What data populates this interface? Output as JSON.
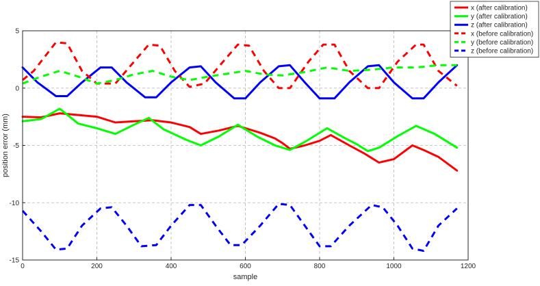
{
  "chart_data": {
    "type": "line",
    "xlabel": "sample",
    "ylabel": "position error (mm)",
    "xlim": [
      0,
      1200
    ],
    "ylim": [
      -15,
      5
    ],
    "xticks": [
      0,
      200,
      400,
      600,
      800,
      1000,
      1200
    ],
    "yticks": [
      -15,
      -10,
      -5,
      0,
      5
    ],
    "xtick_labels": [
      "0",
      "200",
      "400",
      "600",
      "800",
      "1000",
      "1200"
    ],
    "ytick_labels": [
      "-15",
      "-10",
      "-5",
      "0",
      "5"
    ],
    "grid": true,
    "legend_position": "top-right",
    "series": [
      {
        "name": "x (after calibration)",
        "color": "#ff0000",
        "dash": "solid",
        "points": [
          [
            0,
            -2.5
          ],
          [
            50,
            -2.55
          ],
          [
            100,
            -2.2
          ],
          [
            150,
            -2.35
          ],
          [
            200,
            -2.5
          ],
          [
            250,
            -3.0
          ],
          [
            300,
            -2.9
          ],
          [
            350,
            -2.8
          ],
          [
            400,
            -3.0
          ],
          [
            450,
            -3.4
          ],
          [
            480,
            -4.0
          ],
          [
            530,
            -3.7
          ],
          [
            580,
            -3.3
          ],
          [
            640,
            -3.9
          ],
          [
            680,
            -4.4
          ],
          [
            700,
            -4.8
          ],
          [
            720,
            -5.3
          ],
          [
            760,
            -5.0
          ],
          [
            800,
            -4.6
          ],
          [
            830,
            -4.1
          ],
          [
            880,
            -5.0
          ],
          [
            920,
            -5.7
          ],
          [
            960,
            -6.5
          ],
          [
            1000,
            -6.2
          ],
          [
            1050,
            -5.0
          ],
          [
            1080,
            -5.4
          ],
          [
            1120,
            -6.0
          ],
          [
            1170,
            -7.2
          ]
        ]
      },
      {
        "name": "y (after calibration)",
        "color": "#00ff00",
        "dash": "solid",
        "points": [
          [
            0,
            -2.9
          ],
          [
            50,
            -2.7
          ],
          [
            100,
            -1.8
          ],
          [
            150,
            -3.1
          ],
          [
            200,
            -3.5
          ],
          [
            250,
            -4.0
          ],
          [
            300,
            -3.2
          ],
          [
            340,
            -2.6
          ],
          [
            380,
            -3.6
          ],
          [
            440,
            -4.5
          ],
          [
            480,
            -5.0
          ],
          [
            530,
            -4.2
          ],
          [
            580,
            -3.2
          ],
          [
            630,
            -4.2
          ],
          [
            680,
            -5.0
          ],
          [
            720,
            -5.4
          ],
          [
            760,
            -4.7
          ],
          [
            820,
            -3.5
          ],
          [
            870,
            -4.4
          ],
          [
            900,
            -4.9
          ],
          [
            930,
            -5.5
          ],
          [
            960,
            -5.2
          ],
          [
            1010,
            -4.2
          ],
          [
            1060,
            -3.3
          ],
          [
            1110,
            -4.0
          ],
          [
            1170,
            -5.2
          ]
        ]
      },
      {
        "name": "z (after calibration)",
        "color": "#0000ff",
        "dash": "solid",
        "points": [
          [
            0,
            1.8
          ],
          [
            40,
            0.5
          ],
          [
            90,
            -0.7
          ],
          [
            120,
            -0.7
          ],
          [
            160,
            0.5
          ],
          [
            210,
            1.8
          ],
          [
            240,
            1.8
          ],
          [
            280,
            0.5
          ],
          [
            330,
            -0.8
          ],
          [
            360,
            -0.8
          ],
          [
            400,
            0.5
          ],
          [
            450,
            1.8
          ],
          [
            480,
            1.9
          ],
          [
            520,
            0.5
          ],
          [
            570,
            -0.9
          ],
          [
            600,
            -0.9
          ],
          [
            640,
            0.5
          ],
          [
            690,
            1.9
          ],
          [
            720,
            2.0
          ],
          [
            760,
            0.5
          ],
          [
            800,
            -0.9
          ],
          [
            840,
            -0.9
          ],
          [
            880,
            0.5
          ],
          [
            930,
            1.9
          ],
          [
            960,
            2.0
          ],
          [
            1000,
            0.5
          ],
          [
            1050,
            -0.9
          ],
          [
            1080,
            -0.9
          ],
          [
            1120,
            0.5
          ],
          [
            1170,
            2.0
          ]
        ]
      },
      {
        "name": "x (before calibration)",
        "color": "#ff0000",
        "dash": "dashed",
        "points": [
          [
            0,
            0.7
          ],
          [
            30,
            1.5
          ],
          [
            90,
            4.0
          ],
          [
            120,
            3.9
          ],
          [
            160,
            1.5
          ],
          [
            200,
            0.4
          ],
          [
            250,
            0.4
          ],
          [
            300,
            2.3
          ],
          [
            340,
            3.8
          ],
          [
            370,
            3.7
          ],
          [
            410,
            1.5
          ],
          [
            450,
            0.1
          ],
          [
            490,
            0.4
          ],
          [
            540,
            2.3
          ],
          [
            580,
            3.8
          ],
          [
            610,
            3.7
          ],
          [
            650,
            1.5
          ],
          [
            690,
            0.0
          ],
          [
            720,
            0.0
          ],
          [
            770,
            2.3
          ],
          [
            810,
            3.8
          ],
          [
            840,
            3.8
          ],
          [
            880,
            1.5
          ],
          [
            930,
            0.0
          ],
          [
            960,
            0.0
          ],
          [
            1010,
            2.3
          ],
          [
            1060,
            3.8
          ],
          [
            1080,
            3.8
          ],
          [
            1120,
            1.5
          ],
          [
            1170,
            0.2
          ]
        ]
      },
      {
        "name": "y (before calibration)",
        "color": "#00ff00",
        "dash": "dashed",
        "points": [
          [
            0,
            0.4
          ],
          [
            50,
            1.0
          ],
          [
            100,
            1.5
          ],
          [
            150,
            1.0
          ],
          [
            200,
            0.4
          ],
          [
            250,
            0.7
          ],
          [
            300,
            1.2
          ],
          [
            350,
            1.5
          ],
          [
            400,
            1.0
          ],
          [
            450,
            0.7
          ],
          [
            500,
            1.0
          ],
          [
            560,
            1.3
          ],
          [
            600,
            1.5
          ],
          [
            650,
            1.2
          ],
          [
            700,
            1.1
          ],
          [
            760,
            1.4
          ],
          [
            820,
            1.8
          ],
          [
            880,
            1.5
          ],
          [
            940,
            1.6
          ],
          [
            1000,
            1.8
          ],
          [
            1060,
            1.8
          ],
          [
            1120,
            2.0
          ],
          [
            1170,
            2.0
          ]
        ]
      },
      {
        "name": "z (before calibration)",
        "color": "#0000ff",
        "dash": "dashed",
        "points": [
          [
            0,
            -10.7
          ],
          [
            50,
            -12.5
          ],
          [
            90,
            -14.1
          ],
          [
            120,
            -14.0
          ],
          [
            160,
            -12.0
          ],
          [
            210,
            -10.5
          ],
          [
            240,
            -10.4
          ],
          [
            280,
            -12.0
          ],
          [
            320,
            -13.8
          ],
          [
            360,
            -13.7
          ],
          [
            400,
            -12.0
          ],
          [
            450,
            -10.2
          ],
          [
            480,
            -10.2
          ],
          [
            520,
            -12.0
          ],
          [
            560,
            -13.7
          ],
          [
            590,
            -13.7
          ],
          [
            640,
            -12.0
          ],
          [
            690,
            -10.1
          ],
          [
            720,
            -10.2
          ],
          [
            760,
            -12.0
          ],
          [
            800,
            -13.8
          ],
          [
            830,
            -13.8
          ],
          [
            880,
            -12.0
          ],
          [
            940,
            -10.2
          ],
          [
            970,
            -10.4
          ],
          [
            1010,
            -12.0
          ],
          [
            1050,
            -14.0
          ],
          [
            1080,
            -14.2
          ],
          [
            1120,
            -12.0
          ],
          [
            1170,
            -10.5
          ]
        ]
      }
    ]
  }
}
